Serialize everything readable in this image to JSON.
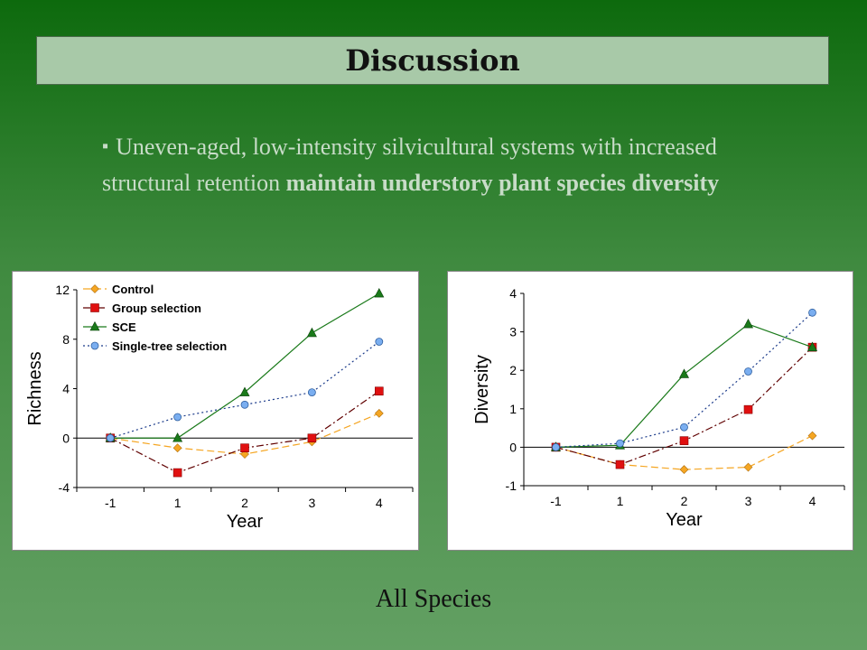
{
  "slide": {
    "title": "Discussion",
    "bullet_plain": "Uneven-aged, low-intensity silvicultural systems with increased structural retention ",
    "bullet_bold": "maintain understory plant species diversity",
    "footer": "All Species"
  },
  "chart_data": [
    {
      "type": "line",
      "xlabel": "Year",
      "ylabel": "Richness",
      "categories": [
        "-1",
        "1",
        "2",
        "3",
        "4"
      ],
      "ylim": [
        -4,
        12
      ],
      "yticks": [
        -4,
        0,
        4,
        8,
        12
      ],
      "legend": "top-left",
      "series": [
        {
          "name": "Control",
          "values": [
            0,
            -0.8,
            -1.3,
            -0.3,
            2.0
          ],
          "color": "#f5a623",
          "marker": "diamond",
          "dash": "8,4"
        },
        {
          "name": "Group selection",
          "values": [
            0,
            -2.8,
            -0.8,
            0.0,
            3.8
          ],
          "color": "#e01010",
          "marker": "square",
          "dash": "8,3,2,3"
        },
        {
          "name": "SCE",
          "values": [
            0,
            0,
            3.7,
            8.5,
            11.7
          ],
          "color": "#1a7a1a",
          "marker": "triangle",
          "dash": ""
        },
        {
          "name": "Single-tree selection",
          "values": [
            0,
            1.7,
            2.7,
            3.7,
            7.8
          ],
          "color": "#7aaef0",
          "marker": "circle",
          "dash": "2,3"
        }
      ]
    },
    {
      "type": "line",
      "xlabel": "Year",
      "ylabel": "Diversity",
      "categories": [
        "-1",
        "1",
        "2",
        "3",
        "4"
      ],
      "ylim": [
        -1,
        4
      ],
      "yticks": [
        -1,
        0,
        1,
        2,
        3,
        4
      ],
      "series": [
        {
          "values": [
            0,
            -0.45,
            -0.58,
            -0.52,
            0.3
          ],
          "color": "#f5a623",
          "marker": "diamond",
          "dash": "8,4"
        },
        {
          "values": [
            0,
            -0.45,
            0.17,
            0.98,
            2.6
          ],
          "color": "#e01010",
          "marker": "square",
          "dash": "8,3,2,3"
        },
        {
          "values": [
            0,
            0.05,
            1.9,
            3.2,
            2.6
          ],
          "color": "#1a7a1a",
          "marker": "triangle",
          "dash": ""
        },
        {
          "values": [
            0,
            0.1,
            0.52,
            1.97,
            3.5
          ],
          "color": "#7aaef0",
          "marker": "circle",
          "dash": "2,3"
        }
      ]
    }
  ]
}
